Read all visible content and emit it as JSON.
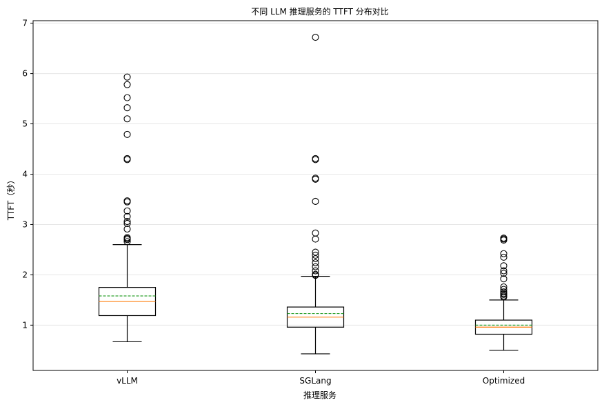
{
  "chart_data": {
    "type": "box",
    "title": "不同 LLM 推理服务的 TTFT 分布对比",
    "xlabel": "推理服务",
    "ylabel": "TTFT（秒）",
    "ylim": [
      0.1,
      7.05
    ],
    "yticks": [
      1,
      2,
      3,
      4,
      5,
      6,
      7
    ],
    "grid": "y",
    "categories": [
      "vLLM",
      "SGLang",
      "Optimized"
    ],
    "boxes": [
      {
        "name": "vLLM",
        "whisker_low": 0.67,
        "q1": 1.19,
        "median": 1.47,
        "mean": 1.58,
        "q3": 1.75,
        "whisker_high": 2.6,
        "outliers": [
          2.66,
          2.7,
          2.72,
          2.74,
          2.91,
          3.02,
          3.06,
          3.16,
          3.27,
          3.45,
          3.47,
          4.29,
          4.31,
          4.79,
          5.1,
          5.32,
          5.52,
          5.78,
          5.93
        ]
      },
      {
        "name": "SGLang",
        "whisker_low": 0.43,
        "q1": 0.96,
        "median": 1.16,
        "mean": 1.23,
        "q3": 1.36,
        "whisker_high": 1.97,
        "outliers": [
          1.99,
          2.01,
          2.08,
          2.16,
          2.24,
          2.32,
          2.39,
          2.45,
          2.71,
          2.83,
          3.46,
          3.9,
          3.92,
          4.29,
          4.31,
          6.72
        ]
      },
      {
        "name": "Optimized",
        "whisker_low": 0.5,
        "q1": 0.82,
        "median": 0.96,
        "mean": 1.0,
        "q3": 1.1,
        "whisker_high": 1.5,
        "outliers": [
          1.56,
          1.58,
          1.61,
          1.63,
          1.66,
          1.71,
          1.76,
          1.92,
          2.03,
          2.08,
          2.18,
          2.35,
          2.42,
          2.69,
          2.71,
          2.73
        ]
      }
    ],
    "colors": {
      "box": "#000000",
      "median": "#ff7f0e",
      "mean": "#2ca02c",
      "grid": "#e6e6e6"
    }
  }
}
